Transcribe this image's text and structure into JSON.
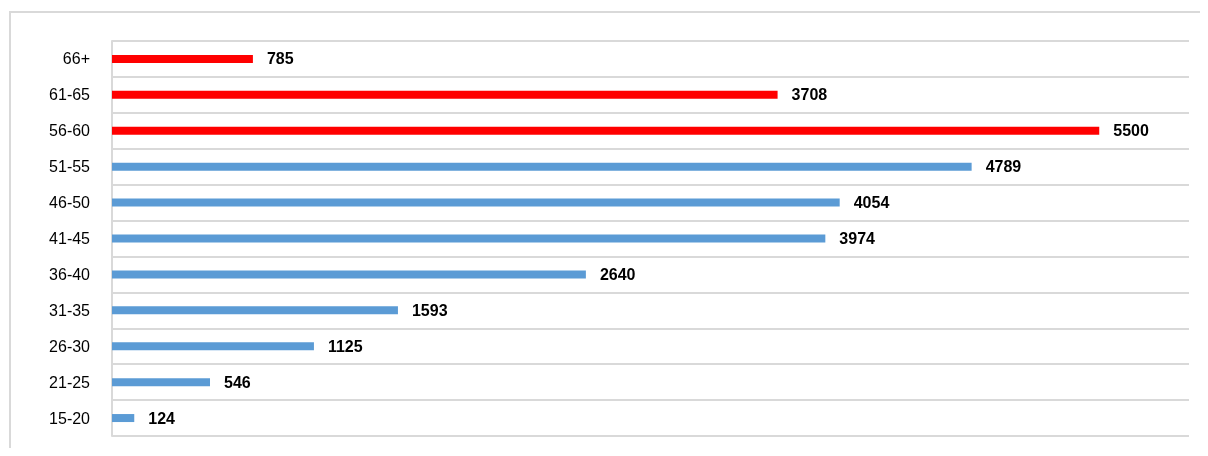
{
  "chart_data": {
    "type": "bar",
    "orientation": "horizontal",
    "categories": [
      "66+",
      "61-65",
      "56-60",
      "51-55",
      "46-50",
      "41-45",
      "36-40",
      "31-35",
      "26-30",
      "21-25",
      "15-20"
    ],
    "values": [
      785,
      3708,
      5500,
      4789,
      4054,
      3974,
      2640,
      1593,
      1125,
      546,
      124
    ],
    "colors": [
      "#ff0000",
      "#ff0000",
      "#ff0000",
      "#5b9bd5",
      "#5b9bd5",
      "#5b9bd5",
      "#5b9bd5",
      "#5b9bd5",
      "#5b9bd5",
      "#5b9bd5",
      "#5b9bd5"
    ],
    "data_labels": true,
    "grid": "y",
    "tick_labels": "y"
  }
}
